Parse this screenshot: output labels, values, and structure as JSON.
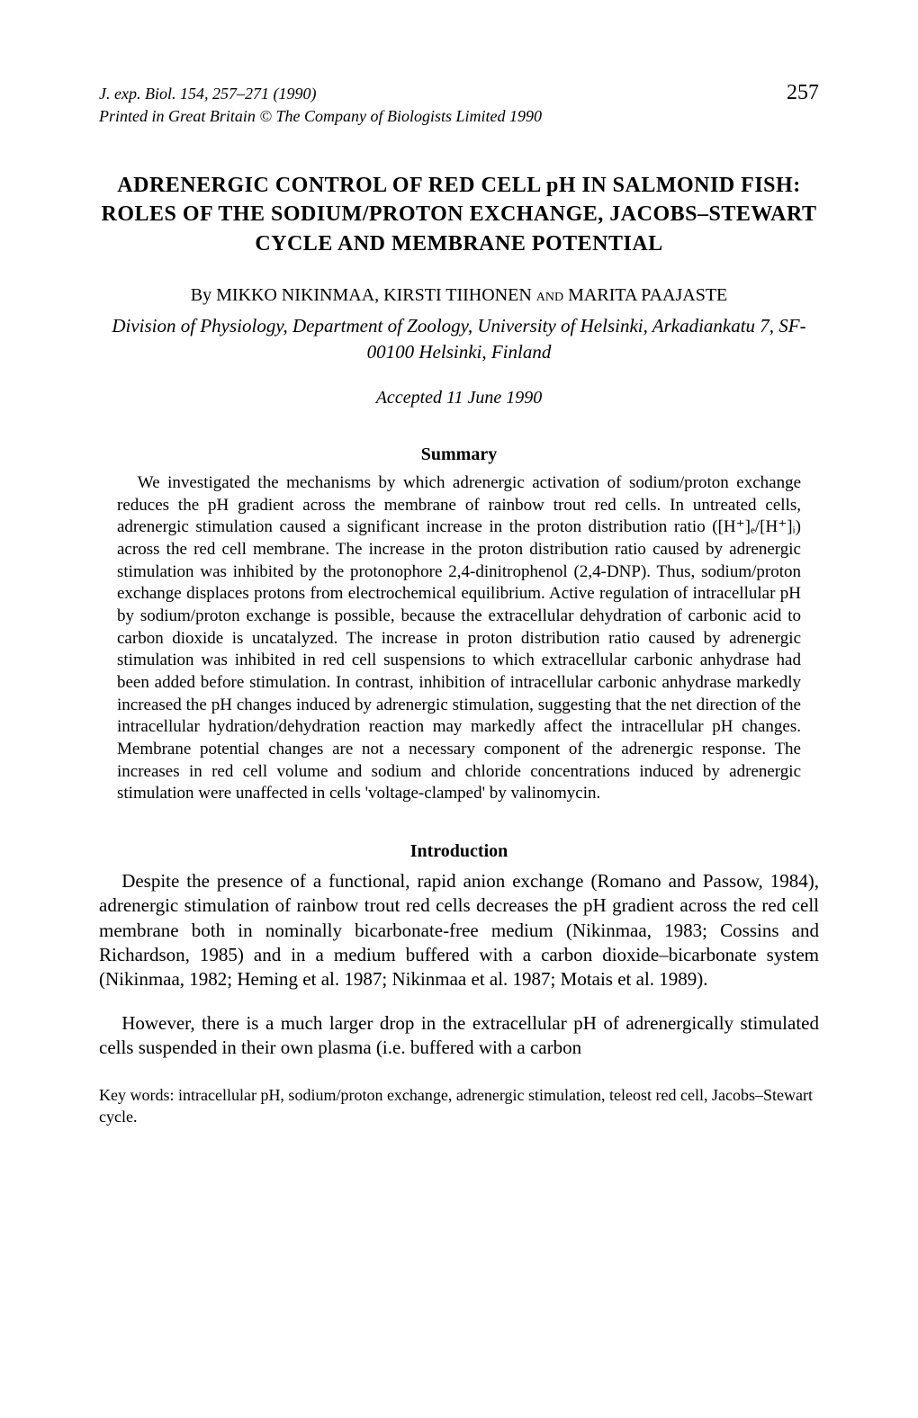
{
  "header": {
    "journal_line": "J. exp. Biol. 154, 257–271 (1990)",
    "page_number": "257",
    "printed_line": "Printed in Great Britain © The Company of Biologists Limited 1990"
  },
  "title": "ADRENERGIC CONTROL OF RED CELL pH IN SALMONID FISH: ROLES OF THE SODIUM/PROTON EXCHANGE, JACOBS–STEWART CYCLE AND MEMBRANE POTENTIAL",
  "authors": {
    "by": "By ",
    "names": "MIKKO NIKINMAA, KIRSTI TIIHONEN",
    "and": " and ",
    "last": "MARITA PAAJASTE"
  },
  "affiliation": "Division of Physiology, Department of Zoology, University of Helsinki, Arkadiankatu 7, SF-00100 Helsinki, Finland",
  "accepted": "Accepted 11 June 1990",
  "summary_heading": "Summary",
  "summary_text": "We investigated the mechanisms by which adrenergic activation of sodium/proton exchange reduces the pH gradient across the membrane of rainbow trout red cells. In untreated cells, adrenergic stimulation caused a significant increase in the proton distribution ratio ([H⁺]ₑ/[H⁺]ᵢ) across the red cell membrane. The increase in the proton distribution ratio caused by adrenergic stimulation was inhibited by the protonophore 2,4-dinitrophenol (2,4-DNP). Thus, sodium/proton exchange displaces protons from electrochemical equilibrium. Active regulation of intracellular pH by sodium/proton exchange is possible, because the extracellular dehydration of carbonic acid to carbon dioxide is uncatalyzed. The increase in proton distribution ratio caused by adrenergic stimulation was inhibited in red cell suspensions to which extracellular carbonic anhydrase had been added before stimulation. In contrast, inhibition of intracellular carbonic anhydrase markedly increased the pH changes induced by adrenergic stimulation, suggesting that the net direction of the intracellular hydration/dehydration reaction may markedly affect the intracellular pH changes. Membrane potential changes are not a necessary component of the adrenergic response. The increases in red cell volume and sodium and chloride concentrations induced by adrenergic stimulation were unaffected in cells 'voltage-clamped' by valinomycin.",
  "introduction_heading": "Introduction",
  "intro_p1": "Despite the presence of a functional, rapid anion exchange (Romano and Passow, 1984), adrenergic stimulation of rainbow trout red cells decreases the pH gradient across the red cell membrane both in nominally bicarbonate-free medium (Nikinmaa, 1983; Cossins and Richardson, 1985) and in a medium buffered with a carbon dioxide–bicarbonate system (Nikinmaa, 1982; Heming et al. 1987; Nikinmaa et al. 1987; Motais et al. 1989).",
  "intro_p2": "However, there is a much larger drop in the extracellular pH of adrenergically stimulated cells suspended in their own plasma (i.e. buffered with a carbon",
  "keywords": "Key words: intracellular pH, sodium/proton exchange, adrenergic stimulation, teleost red cell, Jacobs–Stewart cycle."
}
